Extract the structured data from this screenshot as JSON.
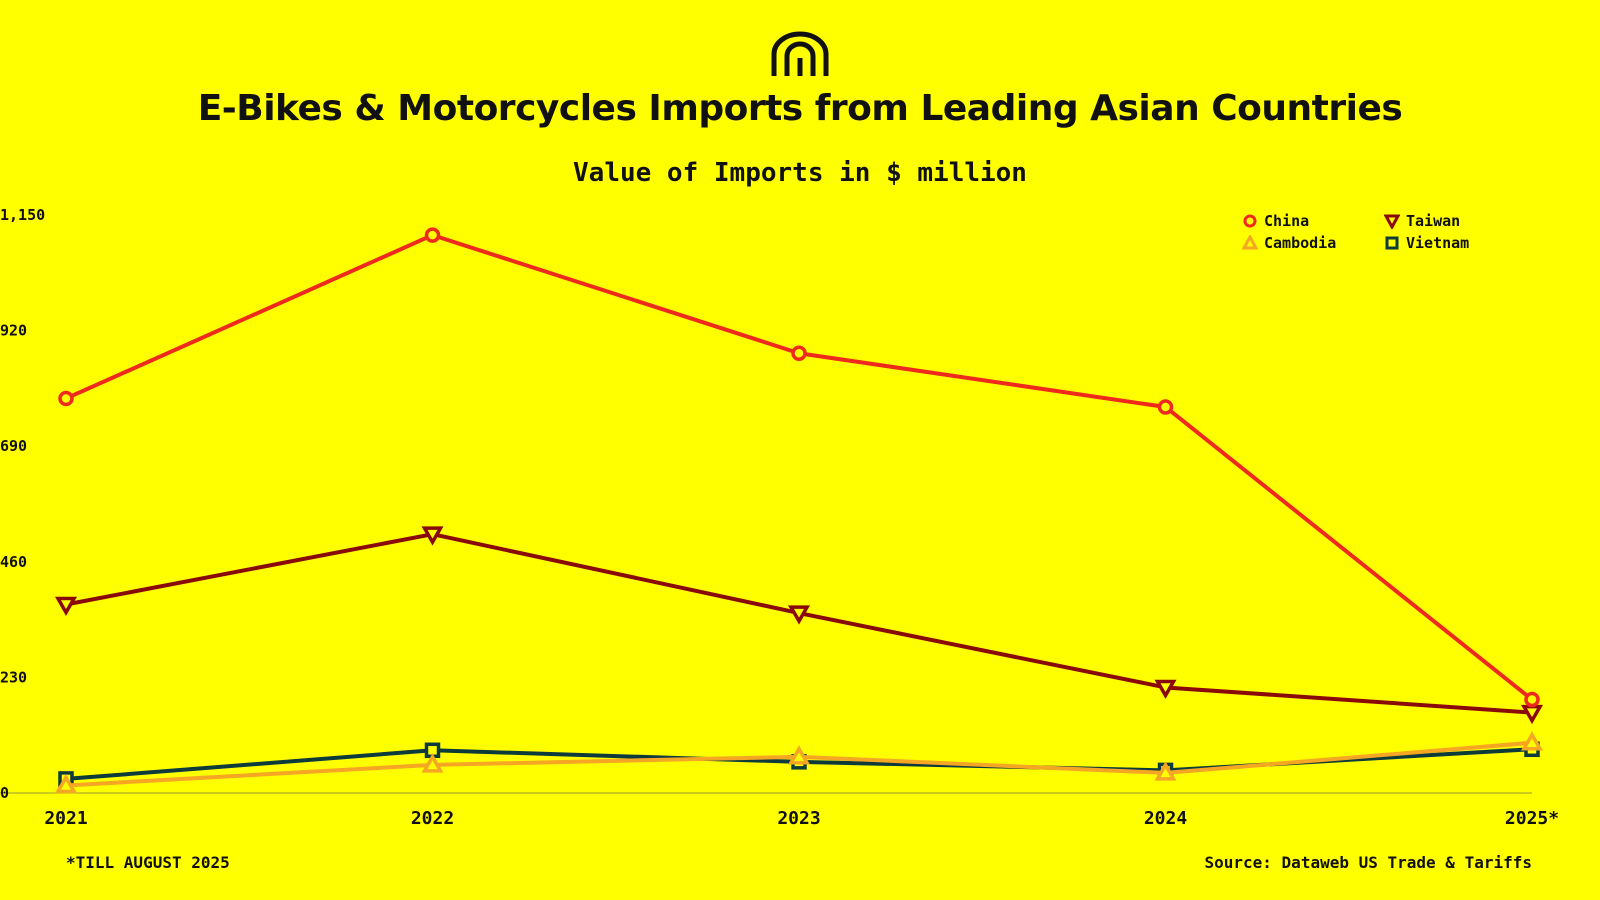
{
  "title": "E-Bikes & Motorcycles Imports from Leading Asian Countries",
  "subtitle": "Value of Imports in $ million",
  "logo_icon": "arch-m-logo-icon",
  "footnote": "*TILL AUGUST 2025",
  "source": "Source: Dataweb US Trade & Tariffs",
  "chart_data": {
    "type": "line",
    "categories": [
      "2021",
      "2022",
      "2023",
      "2024",
      "2025*"
    ],
    "y_ticks": [
      0,
      230,
      460,
      690,
      920,
      1150
    ],
    "y_tick_labels": [
      "0",
      "230",
      "460",
      "690",
      "920",
      "1,150"
    ],
    "ylim": [
      0,
      1150
    ],
    "legend_position": "top-right",
    "grid": false,
    "series": [
      {
        "name": "China",
        "color": "#ee2a1c",
        "marker": "circle",
        "values": [
          785,
          1110,
          875,
          768,
          186
        ]
      },
      {
        "name": "Taiwan",
        "color": "#8a0a0a",
        "marker": "triangle-down",
        "values": [
          375,
          515,
          358,
          210,
          160
        ]
      },
      {
        "name": "Cambodia",
        "color": "#f5a623",
        "marker": "triangle-up",
        "values": [
          15,
          56,
          72,
          40,
          100
        ]
      },
      {
        "name": "Vietnam",
        "color": "#0d3b3c",
        "marker": "square",
        "values": [
          28,
          85,
          62,
          45,
          87
        ]
      }
    ]
  }
}
